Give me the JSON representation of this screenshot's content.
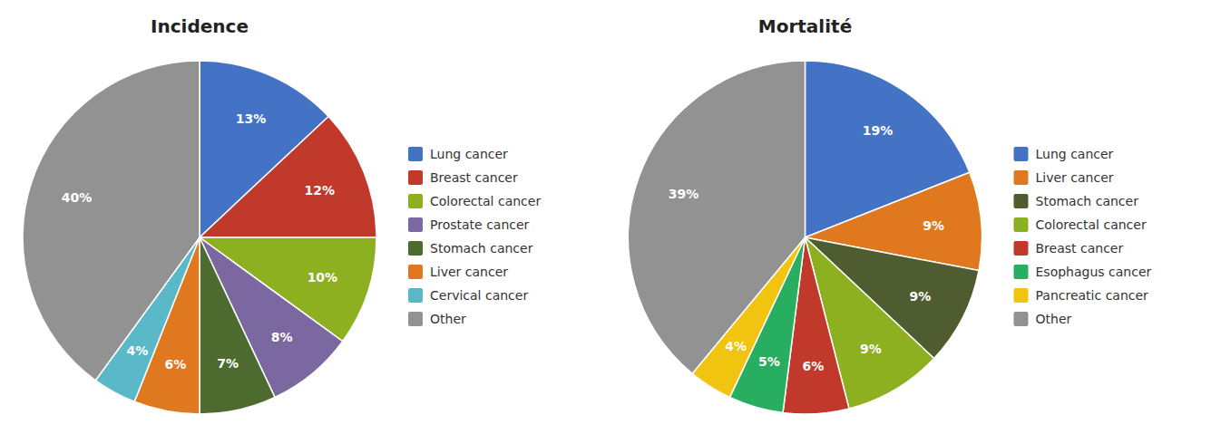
{
  "chart_data": [
    {
      "type": "pie",
      "title": "Incidence",
      "categories": [
        "Lung cancer",
        "Breast cancer",
        "Colorectal cancer",
        "Prostate cancer",
        "Stomach cancer",
        "Liver cancer",
        "Cervical cancer",
        "Other"
      ],
      "values": [
        13,
        12,
        10,
        8,
        7,
        6,
        4,
        40
      ],
      "value_labels": [
        "13%",
        "12%",
        "10%",
        "8%",
        "7%",
        "6%",
        "4%",
        "40%"
      ],
      "colors": [
        "#4472C4",
        "#C0392B",
        "#8DB020",
        "#7B68A0",
        "#4E6B2F",
        "#E07820",
        "#5BB8C8",
        "#929292"
      ],
      "data_labels": true,
      "legend": "right"
    },
    {
      "type": "pie",
      "title": "Mortalité",
      "categories": [
        "Lung cancer",
        "Liver cancer",
        "Stomach cancer",
        "Colorectal cancer",
        "Breast cancer",
        "Esophagus cancer",
        "Pancreatic cancer",
        "Other"
      ],
      "values": [
        19,
        9,
        9,
        9,
        6,
        5,
        4,
        39
      ],
      "value_labels": [
        "19%",
        "9%",
        "9%",
        "9%",
        "6%",
        "5%",
        "4%",
        "39%"
      ],
      "colors": [
        "#4472C4",
        "#E07820",
        "#4E5C2F",
        "#8DB020",
        "#C0392B",
        "#27AE60",
        "#F1C40F",
        "#929292"
      ],
      "data_labels": true,
      "legend": "right"
    }
  ]
}
